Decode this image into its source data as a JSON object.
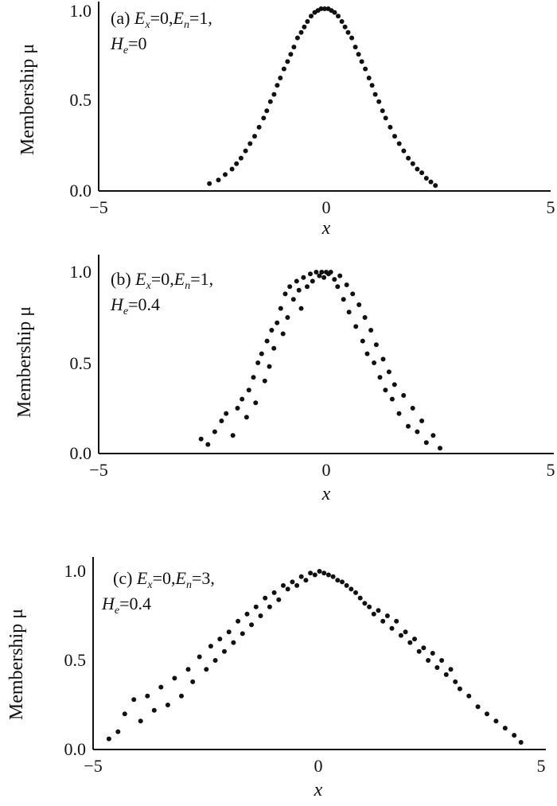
{
  "chart_data": [
    {
      "type": "scatter",
      "panel": "(a)",
      "annotation": {
        "label": "(a)",
        "Ex": "0",
        "En": "1",
        "He": "0"
      },
      "xlabel": "x",
      "ylabel": "Membership μ",
      "xlim": [
        -5,
        5
      ],
      "ylim": [
        0,
        1
      ],
      "xticks": [
        "−5",
        "0",
        "5"
      ],
      "yticks": [
        "0.0",
        "0.5",
        "1.0"
      ],
      "points": {
        "Ex": 0,
        "En": 1,
        "He": 0,
        "x": [
          -2.55,
          -2.35,
          -2.2,
          -2.05,
          -1.95,
          -1.85,
          -1.75,
          -1.65,
          -1.55,
          -1.45,
          -1.35,
          -1.28,
          -1.2,
          -1.12,
          -1.05,
          -0.98,
          -0.9,
          -0.82,
          -0.75,
          -0.68,
          -0.6,
          -0.52,
          -0.45,
          -0.38,
          -0.3,
          -0.22,
          -0.15,
          -0.08,
          0,
          0.08,
          0.15,
          0.22,
          0.3,
          0.38,
          0.45,
          0.52,
          0.6,
          0.68,
          0.75,
          0.82,
          0.9,
          0.98,
          1.05,
          1.12,
          1.2,
          1.28,
          1.35,
          1.45,
          1.55,
          1.65,
          1.75,
          1.85,
          1.95,
          2.05,
          2.15,
          2.25,
          2.35,
          2.45
        ],
        "y": [
          0.04,
          0.06,
          0.09,
          0.12,
          0.15,
          0.18,
          0.22,
          0.26,
          0.3,
          0.35,
          0.4,
          0.44,
          0.49,
          0.53,
          0.58,
          0.62,
          0.67,
          0.71,
          0.75,
          0.79,
          0.84,
          0.87,
          0.9,
          0.93,
          0.96,
          0.98,
          0.99,
          1.0,
          1.0,
          1.0,
          0.99,
          0.98,
          0.96,
          0.93,
          0.9,
          0.87,
          0.84,
          0.79,
          0.75,
          0.71,
          0.67,
          0.62,
          0.58,
          0.53,
          0.49,
          0.44,
          0.4,
          0.35,
          0.3,
          0.26,
          0.22,
          0.18,
          0.15,
          0.12,
          0.1,
          0.07,
          0.05,
          0.03
        ]
      }
    },
    {
      "type": "scatter",
      "panel": "(b)",
      "annotation": {
        "label": "(b)",
        "Ex": "0",
        "En": "1",
        "He": "0.4"
      },
      "xlabel": "x",
      "ylabel": "Membership μ",
      "xlim": [
        -5,
        5
      ],
      "ylim": [
        0,
        1
      ],
      "xticks": [
        "−5",
        "0",
        "5"
      ],
      "yticks": [
        "0.0",
        "0.5",
        "1.0"
      ],
      "points": {
        "Ex": 0,
        "En": 1,
        "He": 0.4,
        "x": [
          -2.75,
          -2.6,
          -2.45,
          -2.3,
          -2.2,
          -2.05,
          -1.95,
          -1.85,
          -1.75,
          -1.7,
          -1.6,
          -1.55,
          -1.5,
          -1.42,
          -1.35,
          -1.3,
          -1.25,
          -1.2,
          -1.15,
          -1.08,
          -1.0,
          -0.95,
          -0.9,
          -0.85,
          -0.8,
          -0.72,
          -0.65,
          -0.6,
          -0.55,
          -0.5,
          -0.42,
          -0.35,
          -0.3,
          -0.22,
          -0.15,
          -0.1,
          -0.05,
          0,
          0.05,
          0.1,
          0.18,
          0.25,
          0.3,
          0.38,
          0.45,
          0.5,
          0.58,
          0.65,
          0.72,
          0.8,
          0.85,
          0.9,
          0.98,
          1.05,
          1.1,
          1.18,
          1.25,
          1.3,
          1.38,
          1.45,
          1.5,
          1.6,
          1.7,
          1.8,
          1.9,
          2.0,
          2.1,
          2.2,
          2.35,
          2.5
        ],
        "y": [
          0.08,
          0.05,
          0.12,
          0.18,
          0.22,
          0.1,
          0.25,
          0.3,
          0.2,
          0.35,
          0.42,
          0.28,
          0.5,
          0.55,
          0.4,
          0.62,
          0.48,
          0.68,
          0.58,
          0.72,
          0.8,
          0.66,
          0.88,
          0.75,
          0.92,
          0.85,
          0.95,
          0.9,
          0.8,
          0.97,
          0.92,
          0.99,
          0.95,
          1.0,
          0.98,
          1.0,
          0.97,
          1.0,
          0.99,
          1.0,
          0.96,
          0.92,
          0.98,
          0.85,
          0.93,
          0.78,
          0.88,
          0.7,
          0.82,
          0.62,
          0.75,
          0.55,
          0.68,
          0.5,
          0.6,
          0.42,
          0.52,
          0.35,
          0.45,
          0.3,
          0.38,
          0.22,
          0.32,
          0.15,
          0.25,
          0.12,
          0.18,
          0.06,
          0.1,
          0.03
        ]
      }
    },
    {
      "type": "scatter",
      "panel": "(c)",
      "annotation": {
        "label": "(c)",
        "Ex": "0",
        "En": "3",
        "He": "0.4"
      },
      "xlabel": "x",
      "ylabel": "Membership μ",
      "xlim": [
        -5,
        5
      ],
      "ylim": [
        0,
        1
      ],
      "xticks": [
        "−5",
        "0",
        "5"
      ],
      "yticks": [
        "0.0",
        "0.5",
        "1.0"
      ],
      "points": {
        "Ex": 0,
        "En": 3,
        "He": 0.4,
        "x": [
          -4.65,
          -4.45,
          -4.3,
          -4.1,
          -3.95,
          -3.8,
          -3.65,
          -3.5,
          -3.35,
          -3.2,
          -3.05,
          -2.9,
          -2.8,
          -2.65,
          -2.5,
          -2.4,
          -2.3,
          -2.2,
          -2.1,
          -2.0,
          -1.9,
          -1.8,
          -1.7,
          -1.6,
          -1.5,
          -1.4,
          -1.3,
          -1.2,
          -1.1,
          -1.0,
          -0.9,
          -0.8,
          -0.7,
          -0.6,
          -0.5,
          -0.4,
          -0.3,
          -0.2,
          -0.1,
          0,
          0.1,
          0.2,
          0.3,
          0.4,
          0.5,
          0.6,
          0.7,
          0.8,
          0.9,
          1.0,
          1.1,
          1.2,
          1.3,
          1.4,
          1.5,
          1.6,
          1.7,
          1.8,
          1.9,
          2.0,
          2.1,
          2.2,
          2.3,
          2.4,
          2.5,
          2.6,
          2.7,
          2.8,
          2.9,
          3.0,
          3.1,
          3.3,
          3.5,
          3.7,
          3.9,
          4.1,
          4.3,
          4.45
        ],
        "y": [
          0.06,
          0.1,
          0.2,
          0.28,
          0.16,
          0.3,
          0.22,
          0.35,
          0.25,
          0.4,
          0.3,
          0.45,
          0.38,
          0.52,
          0.45,
          0.58,
          0.5,
          0.62,
          0.55,
          0.66,
          0.6,
          0.72,
          0.65,
          0.76,
          0.7,
          0.8,
          0.75,
          0.85,
          0.8,
          0.88,
          0.84,
          0.92,
          0.9,
          0.94,
          0.92,
          0.97,
          0.95,
          0.99,
          0.98,
          1.0,
          0.99,
          0.98,
          0.97,
          0.95,
          0.94,
          0.92,
          0.9,
          0.88,
          0.85,
          0.82,
          0.8,
          0.76,
          0.78,
          0.72,
          0.75,
          0.68,
          0.72,
          0.64,
          0.66,
          0.6,
          0.62,
          0.55,
          0.57,
          0.5,
          0.54,
          0.46,
          0.5,
          0.42,
          0.45,
          0.38,
          0.34,
          0.3,
          0.24,
          0.2,
          0.16,
          0.12,
          0.08,
          0.04
        ]
      }
    }
  ]
}
